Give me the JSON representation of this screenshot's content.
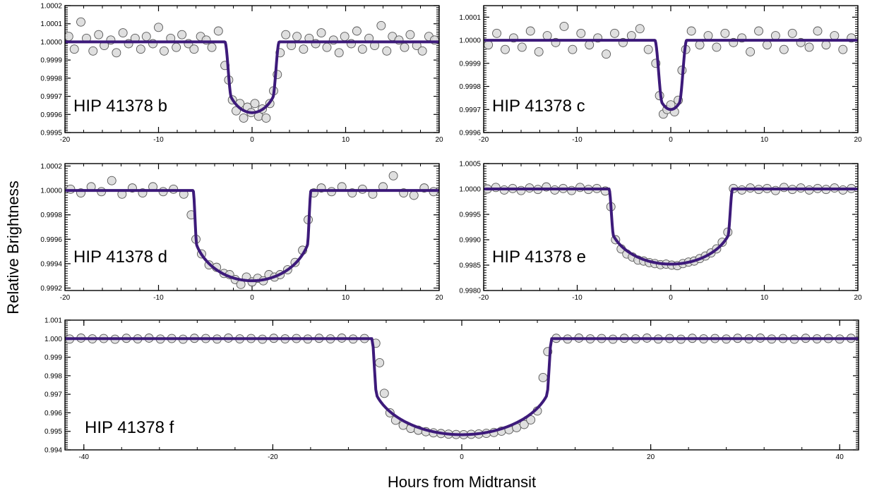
{
  "figure": {
    "ylabel": "Relative Brightness",
    "xlabel": "Hours from Midtransit"
  },
  "colors": {
    "model_line": "#3d1a7a",
    "point_fill": "#d9d9d9",
    "point_stroke": "#555555",
    "frame": "#000000"
  },
  "chart_data": [
    {
      "type": "scatter",
      "label": "HIP 41378 b",
      "xlim": [
        -20,
        20
      ],
      "ylim": [
        0.9995,
        1.0002
      ],
      "xticks": [
        -20,
        -10,
        0,
        10,
        20
      ],
      "xtick_labels": [
        "-20",
        "-10",
        "0",
        "10",
        "20"
      ],
      "yticks": [
        0.9995,
        0.9996,
        0.9997,
        0.9998,
        0.9999,
        1.0,
        1.0001,
        1.0002
      ],
      "ytick_labels": [
        "0.9995",
        "0.9996",
        "0.9997",
        "0.9998",
        "0.9999",
        "1.0000",
        "1.0001",
        "1.0002"
      ],
      "transit": {
        "baseline": 1.0,
        "min": 0.99961,
        "t_half": 2.9,
        "t_flat": 2.2
      },
      "series": [
        {
          "x": [
            -19.6,
            -19.0,
            -18.3,
            -17.7,
            -17.0,
            -16.4,
            -15.8,
            -15.1,
            -14.5,
            -13.8,
            -13.2,
            -12.5,
            -11.9,
            -11.3,
            -10.6,
            -10.0,
            -9.4,
            -8.7,
            -8.1,
            -7.5,
            -6.8,
            -6.2,
            -5.5,
            -4.9,
            -4.3,
            -3.6,
            -2.9,
            -2.5,
            -2.1,
            -1.7,
            -1.3,
            -0.9,
            -0.5,
            -0.1,
            0.3,
            0.7,
            1.1,
            1.5,
            1.9,
            2.3,
            2.7,
            3.0,
            3.6,
            4.2,
            4.8,
            5.5,
            6.1,
            6.8,
            7.4,
            8.0,
            8.7,
            9.3,
            9.9,
            10.6,
            11.2,
            11.8,
            12.5,
            13.1,
            13.8,
            14.4,
            15.0,
            15.7,
            16.3,
            16.9,
            17.6,
            18.2,
            18.9,
            19.5
          ],
          "y": [
            1.00003,
            0.99996,
            1.00011,
            1.00002,
            0.99995,
            1.00004,
            0.99998,
            1.00001,
            0.99994,
            1.00005,
            0.99999,
            1.00002,
            0.99996,
            1.00003,
            0.99999,
            1.00008,
            0.99995,
            1.00002,
            0.99997,
            1.00004,
            0.99999,
            0.99996,
            1.00003,
            1.00001,
            0.99997,
            1.00006,
            0.99987,
            0.99979,
            0.99968,
            0.99962,
            0.99966,
            0.99958,
            0.99964,
            0.99961,
            0.99966,
            0.99959,
            0.99963,
            0.99958,
            0.99966,
            0.99973,
            0.99982,
            0.99994,
            1.00004,
            0.99998,
            1.00003,
            0.99996,
            1.00002,
            0.99999,
            1.00005,
            0.99997,
            1.00001,
            0.99994,
            1.00003,
            0.99999,
            1.00006,
            0.99996,
            1.00002,
            0.99998,
            1.00009,
            0.99995,
            1.00003,
            1.00001,
            0.99997,
            1.00004,
            0.99998,
            0.99995,
            1.00003,
            1.00001
          ]
        }
      ]
    },
    {
      "type": "scatter",
      "label": "HIP 41378 c",
      "xlim": [
        -20,
        20
      ],
      "ylim": [
        0.9996,
        1.00015
      ],
      "xticks": [
        -20,
        -10,
        0,
        10,
        20
      ],
      "xtick_labels": [
        "-20",
        "-10",
        "0",
        "10",
        "20"
      ],
      "yticks": [
        0.9996,
        0.9997,
        0.9998,
        0.9999,
        1.0,
        1.0001
      ],
      "ytick_labels": [
        "0.9996",
        "0.9997",
        "0.9998",
        "0.9999",
        "1.0000",
        "1.0001"
      ],
      "transit": {
        "baseline": 1.0,
        "min": 0.9997,
        "t_half": 1.7,
        "t_flat": 0.9
      },
      "series": [
        {
          "x": [
            -19.5,
            -18.6,
            -17.7,
            -16.8,
            -15.9,
            -15.0,
            -14.1,
            -13.2,
            -12.3,
            -11.4,
            -10.5,
            -9.6,
            -8.7,
            -7.8,
            -6.9,
            -6.0,
            -5.1,
            -4.2,
            -3.3,
            -2.4,
            -1.6,
            -1.2,
            -0.8,
            -0.4,
            0.0,
            0.4,
            0.8,
            1.2,
            1.6,
            2.2,
            3.1,
            4.0,
            4.9,
            5.8,
            6.7,
            7.6,
            8.5,
            9.4,
            10.3,
            11.2,
            12.1,
            13.0,
            13.9,
            14.8,
            15.7,
            16.6,
            17.5,
            18.4,
            19.3
          ],
          "y": [
            0.99998,
            1.00003,
            0.99996,
            1.00001,
            0.99997,
            1.00004,
            0.99995,
            1.00002,
            0.99999,
            1.00006,
            0.99996,
            1.00003,
            0.99998,
            1.00001,
            0.99994,
            1.00003,
            0.99999,
            1.00002,
            1.00005,
            0.99996,
            0.9999,
            0.99976,
            0.99968,
            0.9997,
            0.99972,
            0.99969,
            0.99974,
            0.99987,
            0.99996,
            1.00004,
            0.99998,
            1.00002,
            0.99997,
            1.00003,
            0.99999,
            1.00001,
            0.99995,
            1.00004,
            0.99998,
            1.00002,
            0.99996,
            1.00003,
            0.99999,
            0.99997,
            1.00004,
            0.99998,
            1.00002,
            0.99996,
            1.00001
          ]
        }
      ]
    },
    {
      "type": "scatter",
      "label": "HIP 41378 d",
      "xlim": [
        -20,
        20
      ],
      "ylim": [
        0.99918,
        1.00022
      ],
      "xticks": [
        -20,
        -10,
        0,
        10,
        20
      ],
      "xtick_labels": [
        "-20",
        "-10",
        "0",
        "10",
        "20"
      ],
      "yticks": [
        0.9992,
        0.9994,
        0.9996,
        0.9998,
        1.0,
        1.0002
      ],
      "ytick_labels": [
        "0.9992",
        "0.9994",
        "0.9996",
        "0.9998",
        "1.0000",
        "1.0002"
      ],
      "transit": {
        "baseline": 1.0,
        "min": 0.99926,
        "t_half": 6.3,
        "t_flat": 5.9
      },
      "series": [
        {
          "x": [
            -19.4,
            -18.3,
            -17.2,
            -16.1,
            -15.0,
            -13.9,
            -12.8,
            -11.7,
            -10.6,
            -9.5,
            -8.4,
            -7.3,
            -6.5,
            -6.0,
            -5.4,
            -4.6,
            -3.8,
            -3.0,
            -2.4,
            -1.8,
            -1.2,
            -0.6,
            0.0,
            0.6,
            1.2,
            1.8,
            2.4,
            3.0,
            3.8,
            4.6,
            5.4,
            6.0,
            6.6,
            7.4,
            8.5,
            9.6,
            10.7,
            11.8,
            12.9,
            14.0,
            15.1,
            16.2,
            17.3,
            18.4,
            19.4
          ],
          "y": [
            1.00001,
            0.99998,
            1.00003,
            0.99999,
            1.00008,
            0.99997,
            1.00002,
            0.99998,
            1.00003,
            0.99999,
            1.00001,
            0.99997,
            0.9998,
            0.9996,
            0.99948,
            0.99939,
            0.99937,
            0.99932,
            0.99931,
            0.99927,
            0.99923,
            0.99929,
            0.99925,
            0.99928,
            0.99926,
            0.99931,
            0.99929,
            0.99931,
            0.99935,
            0.99941,
            0.99951,
            0.99976,
            0.99998,
            1.00002,
            0.99999,
            1.00003,
            0.99998,
            1.00001,
            0.99997,
            1.00003,
            1.00012,
            0.99998,
            0.99996,
            1.00002,
            0.99999
          ]
        }
      ]
    },
    {
      "type": "scatter",
      "label": "HIP 41378 e",
      "xlim": [
        -20,
        20
      ],
      "ylim": [
        0.998,
        1.0005
      ],
      "xticks": [
        -20,
        -10,
        0,
        10,
        20
      ],
      "xtick_labels": [
        "-20",
        "-10",
        "0",
        "10",
        "20"
      ],
      "yticks": [
        0.998,
        0.9985,
        0.999,
        0.9995,
        1.0,
        1.0005
      ],
      "ytick_labels": [
        "0.9980",
        "0.9985",
        "0.9990",
        "0.9995",
        "1.0000",
        "1.0005"
      ],
      "transit": {
        "baseline": 1.0,
        "min": 0.99852,
        "t_half": 6.6,
        "t_flat": 6.1
      },
      "series": [
        {
          "x": [
            -19.6,
            -18.7,
            -17.8,
            -16.9,
            -16.0,
            -15.1,
            -14.2,
            -13.3,
            -12.4,
            -11.5,
            -10.6,
            -9.7,
            -8.8,
            -7.9,
            -7.0,
            -6.4,
            -5.9,
            -5.3,
            -4.7,
            -4.1,
            -3.5,
            -2.9,
            -2.3,
            -1.7,
            -1.1,
            -0.5,
            0.1,
            0.7,
            1.3,
            1.9,
            2.5,
            3.1,
            3.7,
            4.3,
            4.9,
            5.5,
            6.1,
            6.7,
            7.6,
            8.5,
            9.4,
            10.3,
            11.2,
            12.1,
            13.0,
            13.9,
            14.8,
            15.7,
            16.6,
            17.5,
            18.4,
            19.3
          ],
          "y": [
            1.0,
            1.00003,
            0.99998,
            1.00001,
            0.99997,
            1.00002,
            0.99999,
            1.00004,
            0.99998,
            1.00001,
            0.99997,
            1.00003,
            0.99999,
            1.00001,
            0.99996,
            0.99965,
            0.999,
            0.99882,
            0.99872,
            0.99866,
            0.9986,
            0.99858,
            0.99855,
            0.99853,
            0.99851,
            0.99852,
            0.9985,
            0.99849,
            0.99853,
            0.99856,
            0.99858,
            0.99863,
            0.99868,
            0.99874,
            0.99882,
            0.99895,
            0.99915,
            1.00001,
            0.99998,
            1.00002,
            0.99999,
            1.00001,
            0.99997,
            1.00003,
            0.99999,
            1.00002,
            0.99998,
            1.00001,
            0.99999,
            1.00002,
            0.99998,
            1.00001
          ]
        }
      ]
    },
    {
      "type": "scatter",
      "label": "HIP 41378 f",
      "xlim": [
        -42,
        42
      ],
      "ylim": [
        0.994,
        1.001
      ],
      "xticks": [
        -40,
        -20,
        0,
        20,
        40
      ],
      "xtick_labels": [
        "-40",
        "-20",
        "0",
        "20",
        "40"
      ],
      "yticks": [
        0.994,
        0.995,
        0.996,
        0.997,
        0.998,
        0.999,
        1.0,
        1.001
      ],
      "ytick_labels": [
        "0.994",
        "0.995",
        "0.996",
        "0.997",
        "0.998",
        "0.999",
        "1.000",
        "1.001"
      ],
      "transit": {
        "baseline": 1.0,
        "min": 0.99482,
        "t_half": 9.5,
        "t_flat": 9.0
      },
      "series": [
        {
          "x": [
            -41.5,
            -40.3,
            -39.1,
            -37.9,
            -36.7,
            -35.5,
            -34.3,
            -33.1,
            -31.9,
            -30.7,
            -29.5,
            -28.3,
            -27.1,
            -25.9,
            -24.7,
            -23.5,
            -22.3,
            -21.1,
            -19.9,
            -18.7,
            -17.5,
            -16.3,
            -15.1,
            -13.9,
            -12.7,
            -11.5,
            -10.3,
            -9.1,
            -8.7,
            -8.2,
            -7.6,
            -7.0,
            -6.2,
            -5.4,
            -4.6,
            -3.8,
            -3.0,
            -2.2,
            -1.4,
            -0.6,
            0.2,
            1.0,
            1.8,
            2.6,
            3.4,
            4.2,
            5.0,
            5.8,
            6.6,
            7.3,
            8.0,
            8.6,
            9.1,
            10.0,
            11.2,
            12.4,
            13.6,
            14.8,
            16.0,
            17.2,
            18.4,
            19.6,
            20.8,
            22.0,
            23.2,
            24.4,
            25.6,
            26.8,
            28.0,
            29.2,
            30.4,
            31.6,
            32.8,
            34.0,
            35.2,
            36.4,
            37.6,
            38.8,
            40.0,
            41.2
          ],
          "y": [
            0.99998,
            1.00003,
            0.99999,
            1.00001,
            0.99997,
            1.00002,
            0.99999,
            1.00003,
            0.99998,
            1.00001,
            0.99997,
            1.00002,
            1.00001,
            0.99998,
            1.00003,
            0.99999,
            1.00001,
            0.99997,
            1.00002,
            0.99999,
            1.00001,
            0.99998,
            1.00002,
            0.99999,
            1.00003,
            0.99998,
            1.00001,
            0.99975,
            0.9987,
            0.99705,
            0.996,
            0.9956,
            0.99533,
            0.99516,
            0.99506,
            0.99498,
            0.99492,
            0.99488,
            0.99485,
            0.99483,
            0.99482,
            0.99484,
            0.99486,
            0.99489,
            0.99494,
            0.99501,
            0.99509,
            0.9952,
            0.99537,
            0.99562,
            0.9961,
            0.9979,
            0.9993,
            1.00002,
            0.99998,
            1.00003,
            0.99999,
            1.00001,
            0.99997,
            1.00002,
            0.99999,
            1.00003,
            0.99998,
            1.00001,
            0.99997,
            1.00002,
            0.99999,
            1.00001,
            0.99998,
            1.00002,
            0.99999,
            1.00003,
            0.99998,
            1.00001,
            0.99997,
            1.00002,
            0.99999,
            1.00001,
            0.99998,
            1.00002
          ]
        }
      ]
    }
  ]
}
